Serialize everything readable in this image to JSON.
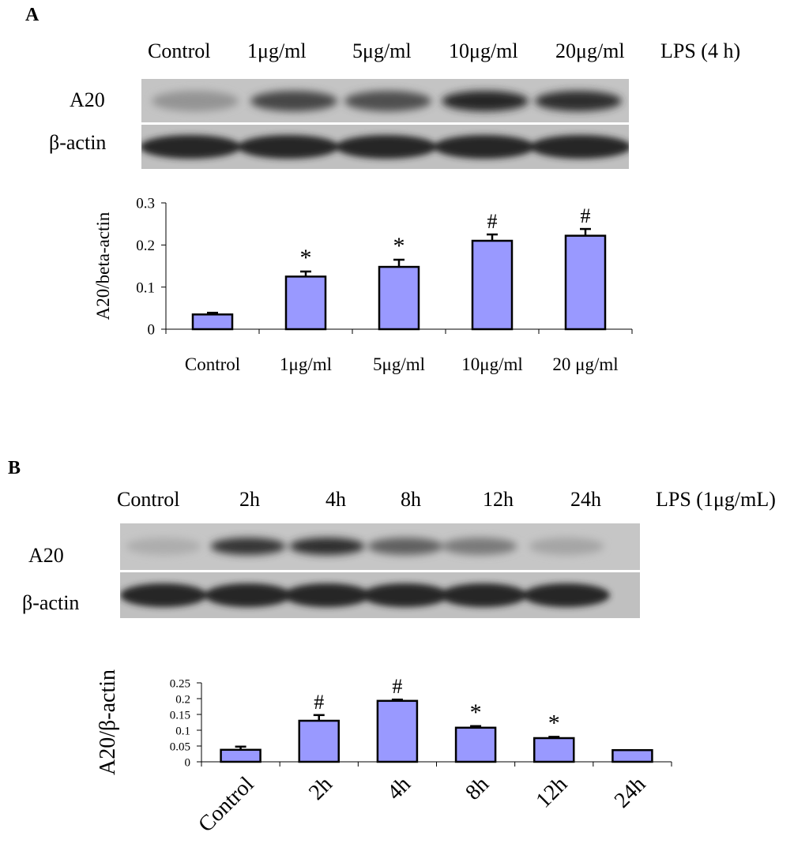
{
  "panels": [
    {
      "letter": "A",
      "blot": {
        "lane_labels": [
          "Control",
          "1μg/ml",
          "5μg/ml",
          "10μg/ml",
          "20μg/ml"
        ],
        "treatment_label": "LPS (4 h)",
        "rows": [
          "A20",
          "β-actin"
        ],
        "band_intensity": {
          "A20": [
            0.25,
            0.7,
            0.65,
            0.9,
            0.85
          ],
          "β-actin": [
            0.9,
            0.9,
            0.9,
            0.9,
            0.9
          ]
        }
      }
    },
    {
      "letter": "B",
      "blot": {
        "lane_labels": [
          "Control",
          "2h",
          "4h",
          "8h",
          "12h",
          "24h"
        ],
        "treatment_label": "LPS (1μg/mL)",
        "rows": [
          "A20",
          "β-actin"
        ],
        "band_intensity": {
          "A20": [
            0.1,
            0.8,
            0.85,
            0.55,
            0.4,
            0.15
          ],
          "β-actin": [
            0.9,
            0.9,
            0.9,
            0.9,
            0.9,
            0.9
          ]
        }
      }
    }
  ],
  "chart_data": [
    {
      "type": "bar",
      "categories": [
        "Control",
        "1μg/ml",
        "5μg/ml",
        "10μg/ml",
        "20 μg/ml"
      ],
      "values": [
        0.035,
        0.125,
        0.148,
        0.21,
        0.222
      ],
      "errors": [
        0.004,
        0.012,
        0.017,
        0.015,
        0.016
      ],
      "annotations": [
        "",
        "*",
        "*",
        "#",
        "#"
      ],
      "ylabel": "A20/beta-actin",
      "ylim": [
        0,
        0.3
      ],
      "yticks": [
        "0",
        "0.1",
        "0.2",
        "0.3"
      ],
      "bar_color": "#9999ff"
    },
    {
      "type": "bar",
      "categories": [
        "Control",
        "2h",
        "4h",
        "8h",
        "12h",
        "24h"
      ],
      "values": [
        0.038,
        0.13,
        0.193,
        0.108,
        0.075,
        0.037
      ],
      "errors": [
        0.01,
        0.018,
        0.004,
        0.005,
        0.004,
        0.0
      ],
      "annotations": [
        "",
        "#",
        "#",
        "*",
        "*",
        ""
      ],
      "ylabel": "A20/β-actin",
      "ylim": [
        0,
        0.25
      ],
      "yticks": [
        "0",
        "0.05",
        "0.1",
        "0.15",
        "0.2",
        "0.25"
      ],
      "bar_color": "#9999ff"
    }
  ]
}
